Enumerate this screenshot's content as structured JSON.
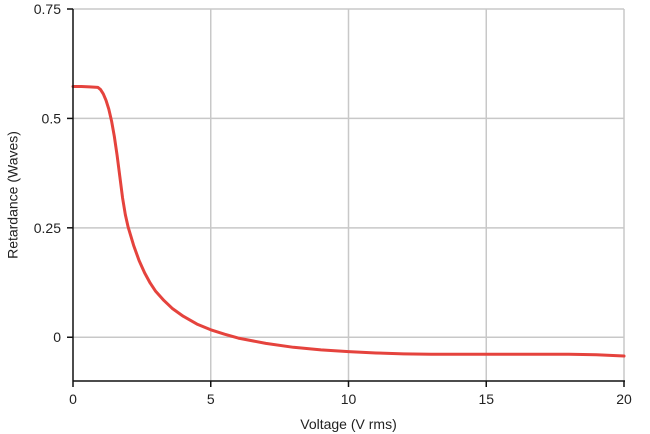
{
  "chart_data": {
    "type": "line",
    "title": "",
    "xlabel": "Voltage (V rms)",
    "ylabel": "Retardance (Waves)",
    "xlim": [
      0,
      20
    ],
    "ylim": [
      -0.1,
      0.75
    ],
    "x_ticks": [
      {
        "value": 0,
        "label": "0"
      },
      {
        "value": 5,
        "label": "5"
      },
      {
        "value": 10,
        "label": "10"
      },
      {
        "value": 15,
        "label": "15"
      },
      {
        "value": 20,
        "label": "20"
      }
    ],
    "y_ticks": [
      {
        "value": 0,
        "label": "0"
      },
      {
        "value": 0.25,
        "label": "0.25"
      },
      {
        "value": 0.5,
        "label": "0.5"
      },
      {
        "value": 0.75,
        "label": "0.75"
      }
    ],
    "grid": true,
    "series": [
      {
        "color": "#e5433d",
        "x": [
          0,
          0.3,
          0.6,
          0.9,
          1.0,
          1.1,
          1.2,
          1.3,
          1.4,
          1.5,
          1.6,
          1.7,
          1.8,
          1.9,
          2.0,
          2.2,
          2.4,
          2.6,
          2.8,
          3.0,
          3.3,
          3.6,
          4.0,
          4.5,
          5.0,
          5.5,
          6.0,
          7.0,
          8.0,
          9.0,
          10.0,
          11.0,
          12.0,
          13.0,
          14.0,
          15.0,
          16.0,
          17.0,
          18.0,
          19.0,
          20.0
        ],
        "y": [
          0.573,
          0.573,
          0.572,
          0.571,
          0.566,
          0.556,
          0.541,
          0.521,
          0.494,
          0.459,
          0.416,
          0.367,
          0.318,
          0.28,
          0.252,
          0.21,
          0.175,
          0.147,
          0.124,
          0.105,
          0.084,
          0.066,
          0.048,
          0.03,
          0.017,
          0.007,
          -0.002,
          -0.014,
          -0.023,
          -0.029,
          -0.033,
          -0.036,
          -0.038,
          -0.039,
          -0.039,
          -0.039,
          -0.039,
          -0.039,
          -0.039,
          -0.04,
          -0.043
        ]
      }
    ]
  }
}
